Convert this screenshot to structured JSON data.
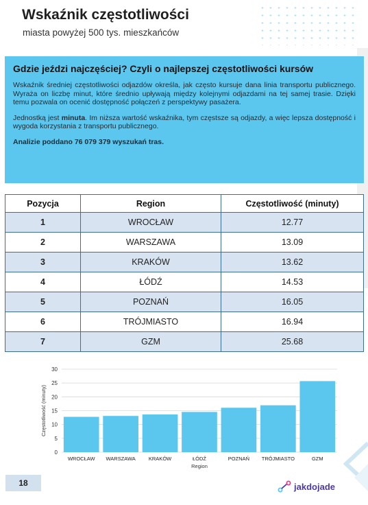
{
  "header": {
    "title": "Wskaźnik częstotliwości",
    "subtitle": "miasta powyżej 500 tys. mieszkańców"
  },
  "info": {
    "title": "Gdzie jeździ najczęściej? Czyli o najlepszej częstotliwości kursów",
    "p1": "Wskaźnik średniej częstotliwości odjazdów określa, jak często kursuje dana linia transportu publicznego. Wyraża on liczbę minut, które średnio upływają między kolejnymi odjazdami na tej samej trasie. Dzięki temu pozwala on ocenić dostępność połączeń z perspektywy pasażera.",
    "p2_before": "Jednostką jest ",
    "p2_bold": "minuta",
    "p2_after": ". Im niższa wartość wskaźnika, tym częstsze są odjazdy, a więc lepsza dostępność i wygoda korzystania z transportu publicznego.",
    "analysis": "Analizie poddano 76 079 379 wyszukań tras."
  },
  "table": {
    "headers": [
      "Pozycja",
      "Region",
      "Częstotliwość (minuty)"
    ],
    "rows": [
      {
        "pos": "1",
        "region": "WROCŁAW",
        "value": "12.77"
      },
      {
        "pos": "2",
        "region": "WARSZAWA",
        "value": "13.09"
      },
      {
        "pos": "3",
        "region": "KRAKÓW",
        "value": "13.62"
      },
      {
        "pos": "4",
        "region": "ŁÓDŹ",
        "value": "14.53"
      },
      {
        "pos": "5",
        "region": "POZNAŃ",
        "value": "16.05"
      },
      {
        "pos": "6",
        "region": "TRÓJMIASTO",
        "value": "16.94"
      },
      {
        "pos": "7",
        "region": "GZM",
        "value": "25.68"
      }
    ]
  },
  "chart_data": {
    "type": "bar",
    "categories": [
      "WROCŁAW",
      "WARSZAWA",
      "KRAKÓW",
      "ŁÓDŹ",
      "POZNAŃ",
      "TRÓJMIASTO",
      "GZM"
    ],
    "values": [
      12.77,
      13.09,
      13.62,
      14.53,
      16.05,
      16.94,
      25.68
    ],
    "xlabel": "Region",
    "ylabel": "Częstotliwość (minuty)",
    "ylim": [
      0,
      30
    ],
    "yticks": [
      0,
      5,
      10,
      15,
      20,
      25,
      30
    ],
    "grid": true,
    "bar_color": "#5cc7ee"
  },
  "footer": {
    "page_number": "18",
    "logo_text": "jakdojade"
  },
  "colors": {
    "accent": "#5cc7ee",
    "table_border": "#3b6e95",
    "table_stripe": "#d8e3f1"
  }
}
